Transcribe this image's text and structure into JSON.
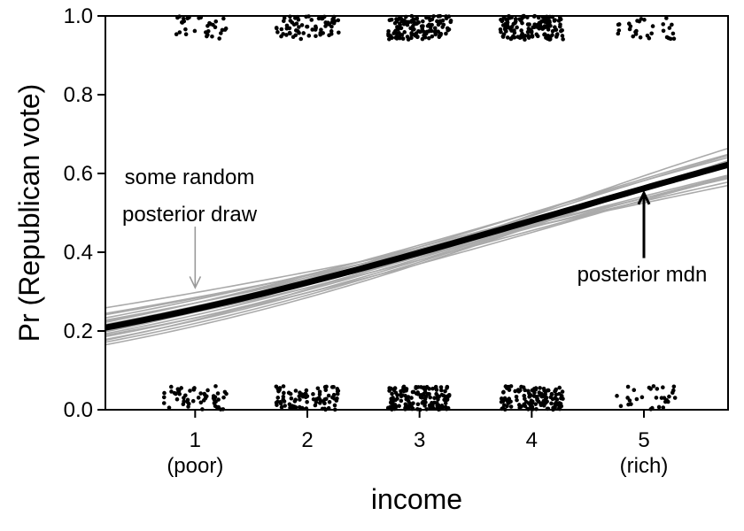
{
  "chart_data": {
    "type": "line",
    "title": "",
    "xlabel": "income",
    "ylabel": "Pr (Republican vote)",
    "xlim": [
      0.2,
      5.75
    ],
    "ylim": [
      0,
      1
    ],
    "grid": false,
    "x_ticks": [
      {
        "value": 1,
        "label": "1",
        "sublabel": "(poor)"
      },
      {
        "value": 2,
        "label": "2",
        "sublabel": ""
      },
      {
        "value": 3,
        "label": "3",
        "sublabel": ""
      },
      {
        "value": 4,
        "label": "4",
        "sublabel": ""
      },
      {
        "value": 5,
        "label": "5",
        "sublabel": "(rich)"
      }
    ],
    "y_ticks": [
      {
        "value": 0.0,
        "label": "0.0"
      },
      {
        "value": 0.2,
        "label": "0.2"
      },
      {
        "value": 0.4,
        "label": "0.4"
      },
      {
        "value": 0.6,
        "label": "0.6"
      },
      {
        "value": 0.8,
        "label": "0.8"
      },
      {
        "value": 1.0,
        "label": "1.0"
      }
    ],
    "median_curve": {
      "name": "posterior mdn",
      "color": "#000000",
      "intercept": -1.4,
      "slope": 0.33
    },
    "posterior_draws": {
      "name": "some random posterior draw",
      "color": "#aaaaaa",
      "lines": [
        {
          "intercept": -1.1,
          "slope": 0.24
        },
        {
          "intercept": -1.2,
          "slope": 0.27
        },
        {
          "intercept": -1.25,
          "slope": 0.3
        },
        {
          "intercept": -1.3,
          "slope": 0.31
        },
        {
          "intercept": -1.35,
          "slope": 0.32
        },
        {
          "intercept": -1.45,
          "slope": 0.34
        },
        {
          "intercept": -1.5,
          "slope": 0.35
        },
        {
          "intercept": -1.55,
          "slope": 0.36
        },
        {
          "intercept": -1.6,
          "slope": 0.37
        },
        {
          "intercept": -1.65,
          "slope": 0.38
        },
        {
          "intercept": -1.4,
          "slope": 0.35
        },
        {
          "intercept": -1.28,
          "slope": 0.29
        },
        {
          "intercept": -1.52,
          "slope": 0.33
        },
        {
          "intercept": -1.42,
          "slope": 0.31
        },
        {
          "intercept": -1.62,
          "slope": 0.4
        },
        {
          "intercept": -1.35,
          "slope": 0.3
        },
        {
          "intercept": -1.7,
          "slope": 0.39
        },
        {
          "intercept": -1.18,
          "slope": 0.26
        },
        {
          "intercept": -1.47,
          "slope": 0.36
        },
        {
          "intercept": -1.32,
          "slope": 0.33
        }
      ]
    },
    "observations": {
      "color": "#000000",
      "jitter_x": 0.28,
      "jitter_y": 0.03,
      "groups": [
        {
          "x": 1,
          "y": 0,
          "n": 55
        },
        {
          "x": 1,
          "y": 1,
          "n": 32
        },
        {
          "x": 2,
          "y": 0,
          "n": 85
        },
        {
          "x": 2,
          "y": 1,
          "n": 70
        },
        {
          "x": 3,
          "y": 0,
          "n": 150
        },
        {
          "x": 3,
          "y": 1,
          "n": 125
        },
        {
          "x": 4,
          "y": 0,
          "n": 130
        },
        {
          "x": 4,
          "y": 1,
          "n": 150
        },
        {
          "x": 5,
          "y": 0,
          "n": 30
        },
        {
          "x": 5,
          "y": 1,
          "n": 30
        }
      ]
    },
    "annotations": [
      {
        "id": "draw",
        "lines": [
          "some random",
          "posterior draw"
        ],
        "arrow_from": [
          1.0,
          0.465
        ],
        "arrow_to": [
          1.0,
          0.31
        ],
        "color": "#999999"
      },
      {
        "id": "mdn",
        "lines": [
          "posterior mdn"
        ],
        "arrow_from": [
          5.0,
          0.385
        ],
        "arrow_to": [
          5.0,
          0.55
        ],
        "color": "#000000"
      }
    ]
  }
}
